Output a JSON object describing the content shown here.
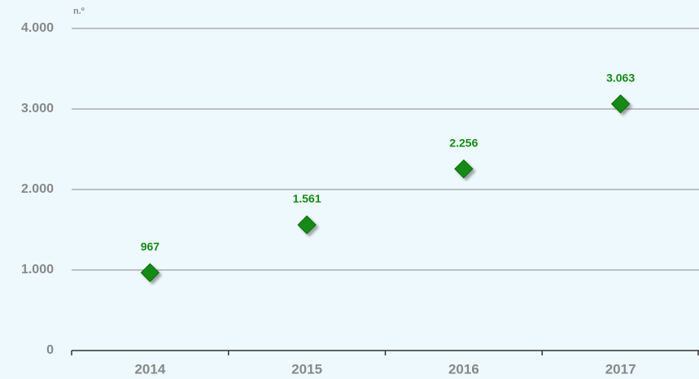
{
  "chart_data": {
    "type": "scatter",
    "unit_label": "n.º",
    "categories": [
      "2014",
      "2015",
      "2016",
      "2017"
    ],
    "values": [
      967,
      1561,
      2256,
      3063
    ],
    "value_labels": [
      "967",
      "1.561",
      "2.256",
      "3.063"
    ],
    "color": "#138a13",
    "ylim": [
      0,
      4000
    ],
    "yticks": [
      0,
      {
        "value": 1000,
        "label": "1.000"
      },
      {
        "value": 2000,
        "label": "2.000"
      },
      {
        "value": 3000,
        "label": "3.000"
      },
      {
        "value": 4000,
        "label": "4.000"
      }
    ],
    "grid": true
  }
}
